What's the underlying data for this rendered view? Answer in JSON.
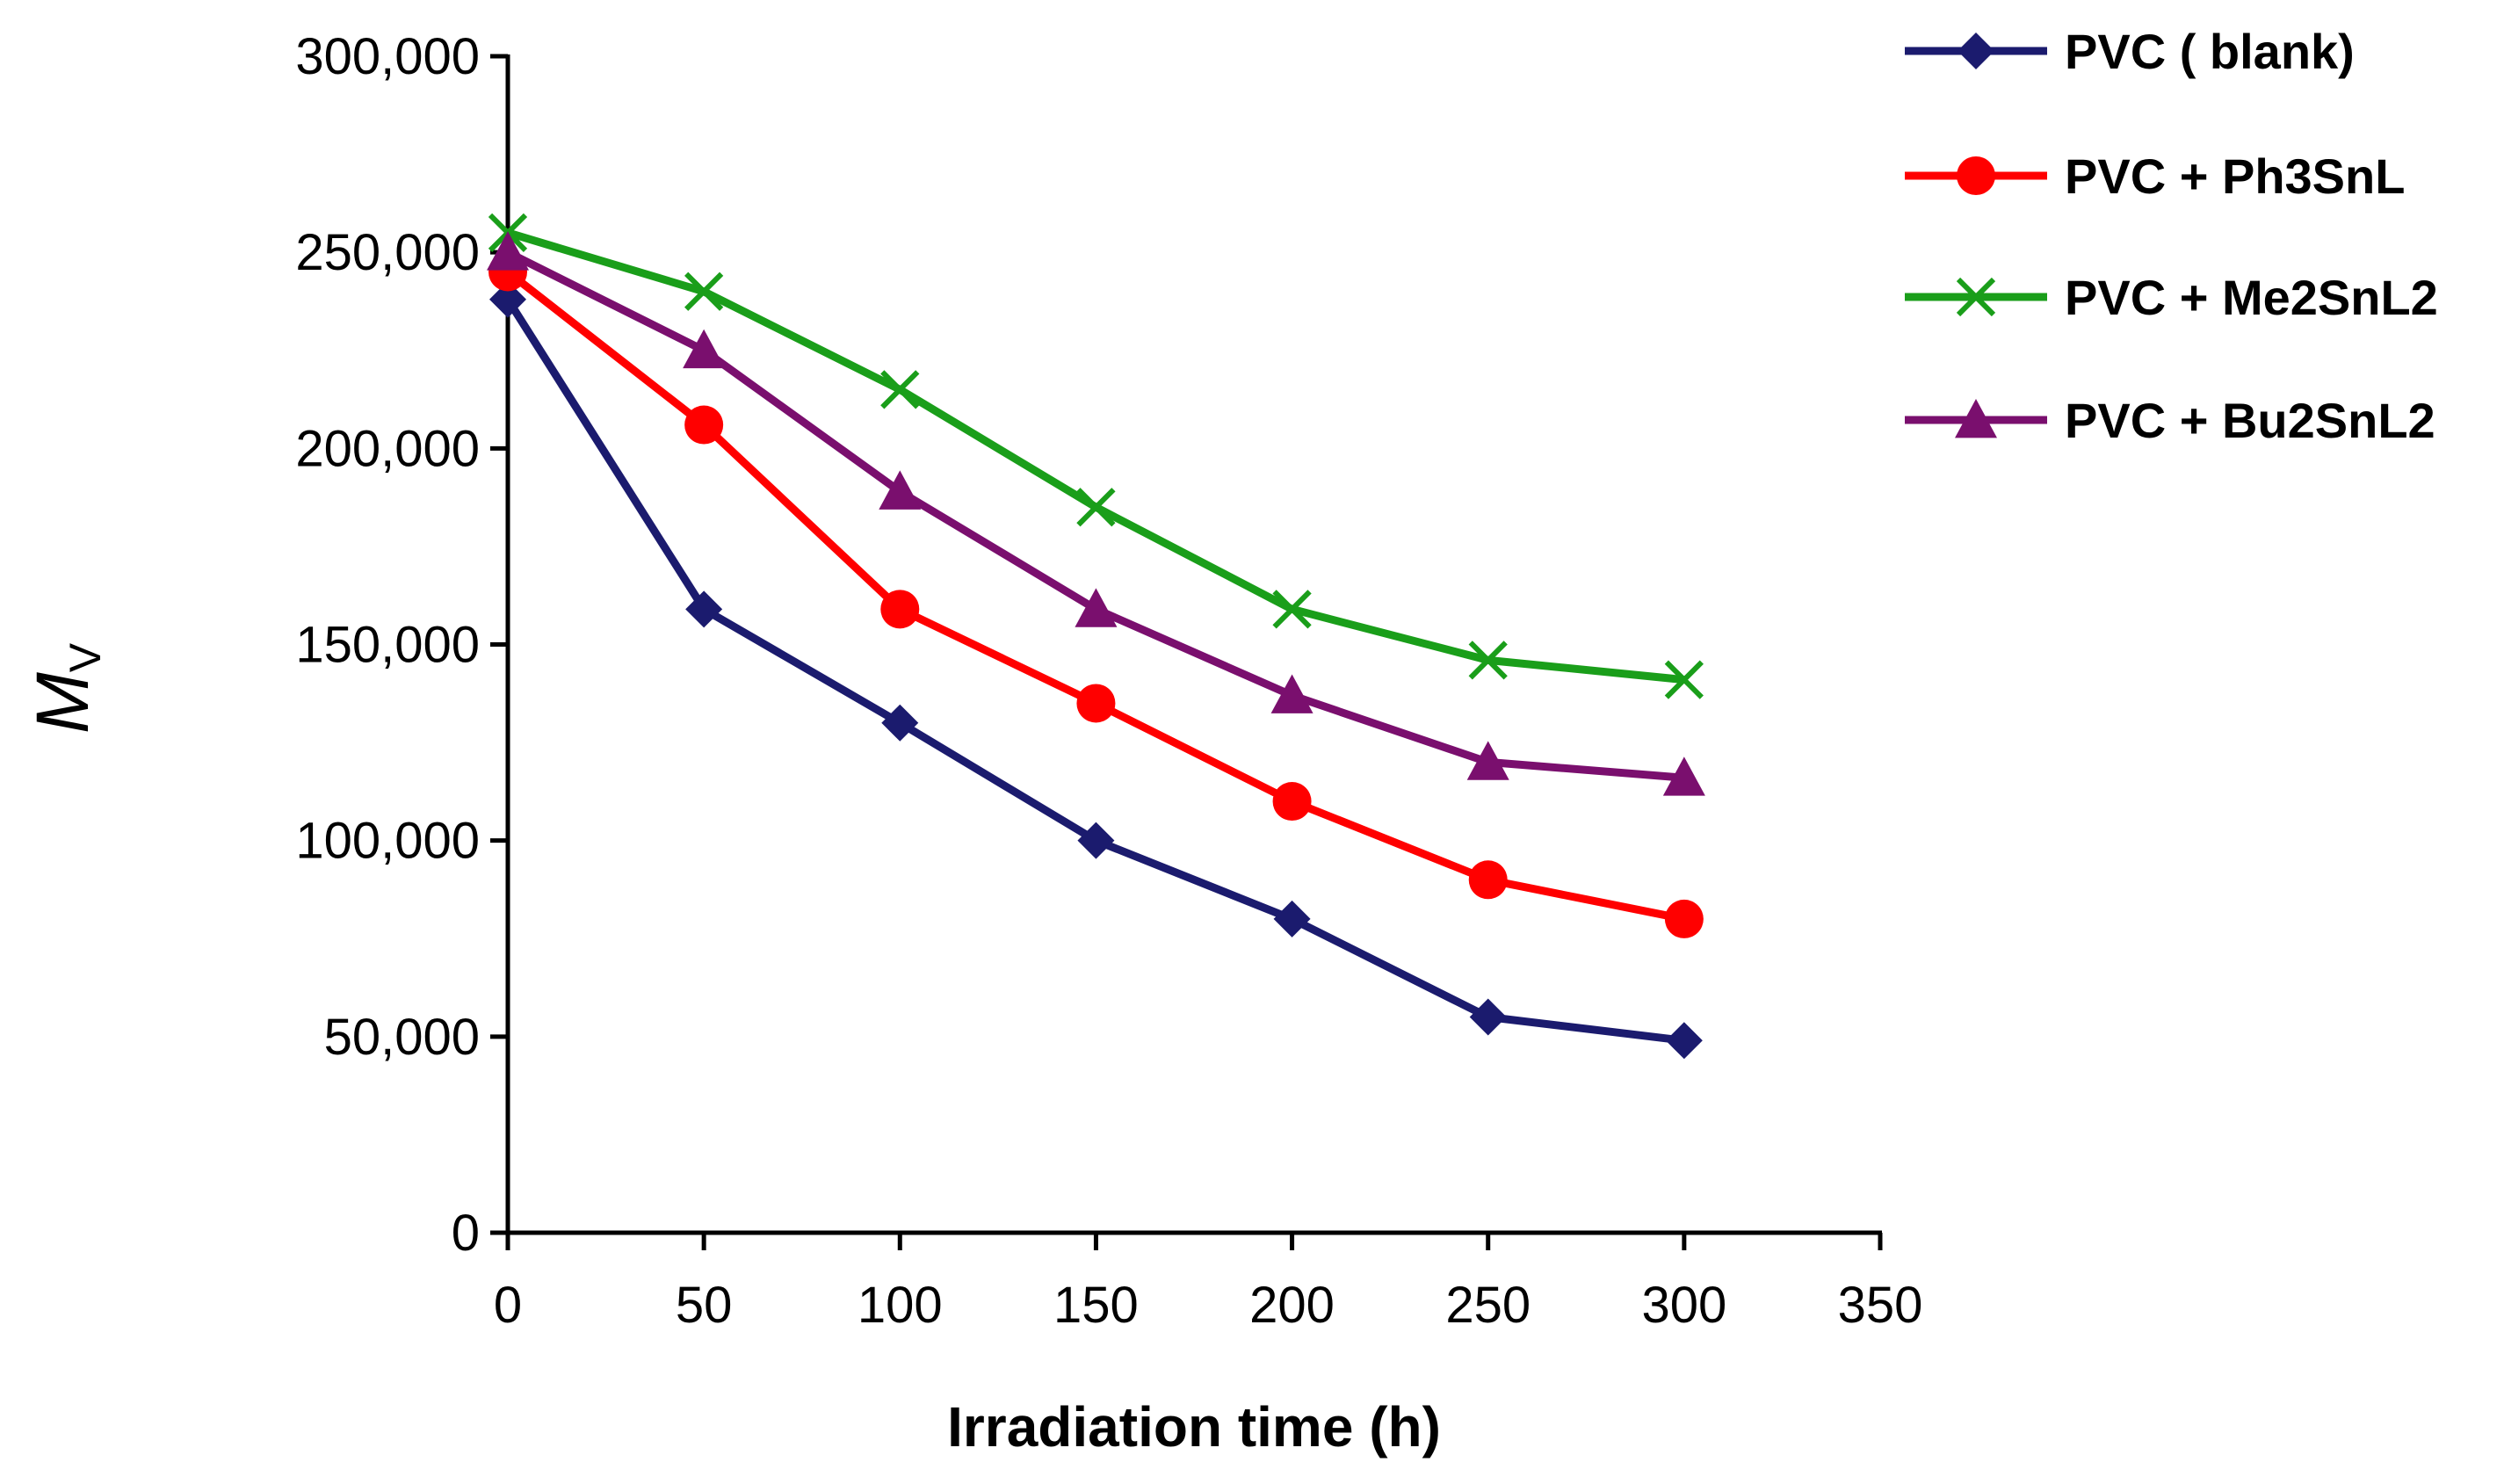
{
  "chart_data": {
    "type": "line",
    "title": "",
    "xlabel": "Irradiation time (h)",
    "ylabel": {
      "main": "M",
      "sub": "V"
    },
    "xlim": [
      0,
      350
    ],
    "ylim": [
      0,
      300000
    ],
    "xticks": [
      0,
      50,
      100,
      150,
      200,
      250,
      300,
      350
    ],
    "xtick_labels": [
      "0",
      "50",
      "100",
      "150",
      "200",
      "250",
      "300",
      "350"
    ],
    "yticks": [
      0,
      50000,
      100000,
      150000,
      200000,
      250000,
      300000
    ],
    "ytick_labels": [
      "0",
      "50,000",
      "100,000",
      "150,000",
      "200,000",
      "250,000",
      "300,000"
    ],
    "grid": false,
    "legend_position": "top-right",
    "x": [
      0,
      50,
      100,
      150,
      200,
      250,
      300
    ],
    "series": [
      {
        "name": "PVC ( blank)",
        "color": "#1b1b6e",
        "marker": "diamond",
        "values": [
          238000,
          159000,
          130000,
          100000,
          80000,
          55000,
          49000
        ]
      },
      {
        "name": "PVC + Ph3SnL",
        "color": "#ff0000",
        "marker": "circle",
        "values": [
          245000,
          206000,
          159000,
          135000,
          110000,
          90000,
          80000
        ]
      },
      {
        "name": "PVC + Me2SnL2",
        "color": "#1a9e1a",
        "marker": "x",
        "values": [
          255000,
          240000,
          215000,
          185000,
          159000,
          146000,
          141000
        ]
      },
      {
        "name": "PVC + Bu2SnL2",
        "color": "#7a0f6e",
        "marker": "triangle",
        "values": [
          250000,
          225000,
          189000,
          159000,
          137000,
          120000,
          116000
        ]
      }
    ]
  }
}
